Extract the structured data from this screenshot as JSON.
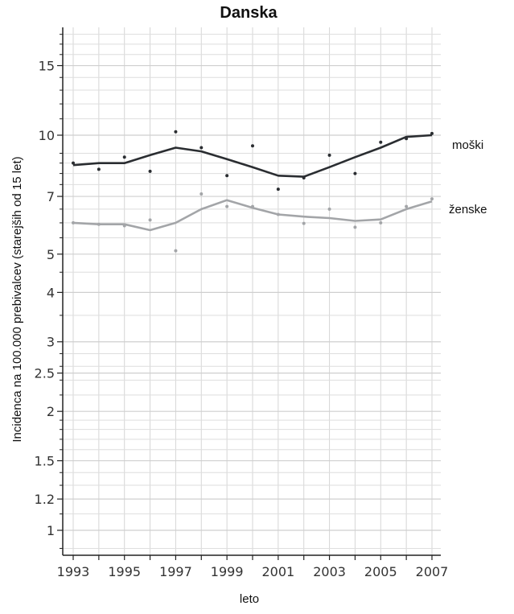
{
  "chart_data": {
    "type": "line",
    "title": "Danska",
    "xlabel": "leto",
    "ylabel": "Incidenca na 100.000 prebivalcev (starejših od 15 let)",
    "x_scale": "linear",
    "y_scale": "log",
    "xlim": [
      1992.6,
      2007.4
    ],
    "ylim": [
      0.75,
      18.5
    ],
    "x_ticks": [
      1993,
      1994,
      1995,
      1996,
      1997,
      1998,
      1999,
      2000,
      2001,
      2002,
      2003,
      2004,
      2005,
      2006,
      2007
    ],
    "x_tick_labels": [
      "1993",
      "1995",
      "1997",
      "1999",
      "2001",
      "2003",
      "2005",
      "2007"
    ],
    "y_major_ticks": [
      1,
      1.2,
      1.5,
      2,
      2.5,
      3,
      4,
      5,
      7,
      10,
      15
    ],
    "y_minor_ticks": [
      0.8,
      0.9,
      1.1,
      1.3,
      1.4,
      1.6,
      1.7,
      1.8,
      1.9,
      2.2,
      2.4,
      2.6,
      2.8,
      3.5,
      4.5,
      5.5,
      6,
      6.5,
      7.5,
      8,
      8.5,
      9,
      11,
      12,
      13,
      14,
      16,
      17,
      18
    ],
    "grid": true,
    "x": [
      1993,
      1994,
      1995,
      1996,
      1997,
      1998,
      1999,
      2000,
      2001,
      2002,
      2003,
      2004,
      2005,
      2006,
      2007
    ],
    "series": [
      {
        "name": "moški",
        "color": "#2a2d31",
        "trend": [
          8.4,
          8.5,
          8.5,
          8.9,
          9.3,
          9.1,
          8.7,
          8.3,
          7.9,
          7.85,
          8.3,
          8.8,
          9.3,
          9.9,
          10.0
        ],
        "points": [
          8.5,
          8.2,
          8.8,
          8.1,
          10.2,
          9.3,
          7.9,
          9.4,
          7.3,
          7.8,
          8.9,
          8.0,
          9.6,
          9.8,
          10.1
        ]
      },
      {
        "name": "ženske",
        "color": "#a3a5a8",
        "trend": [
          6.0,
          5.95,
          5.95,
          5.75,
          6.0,
          6.5,
          6.85,
          6.55,
          6.3,
          6.22,
          6.17,
          6.07,
          6.12,
          6.5,
          6.8
        ],
        "points": [
          6.0,
          5.95,
          5.9,
          6.1,
          5.1,
          7.1,
          6.6,
          6.6,
          6.3,
          5.98,
          6.5,
          5.85,
          6.0,
          6.6,
          6.9
        ]
      }
    ]
  }
}
